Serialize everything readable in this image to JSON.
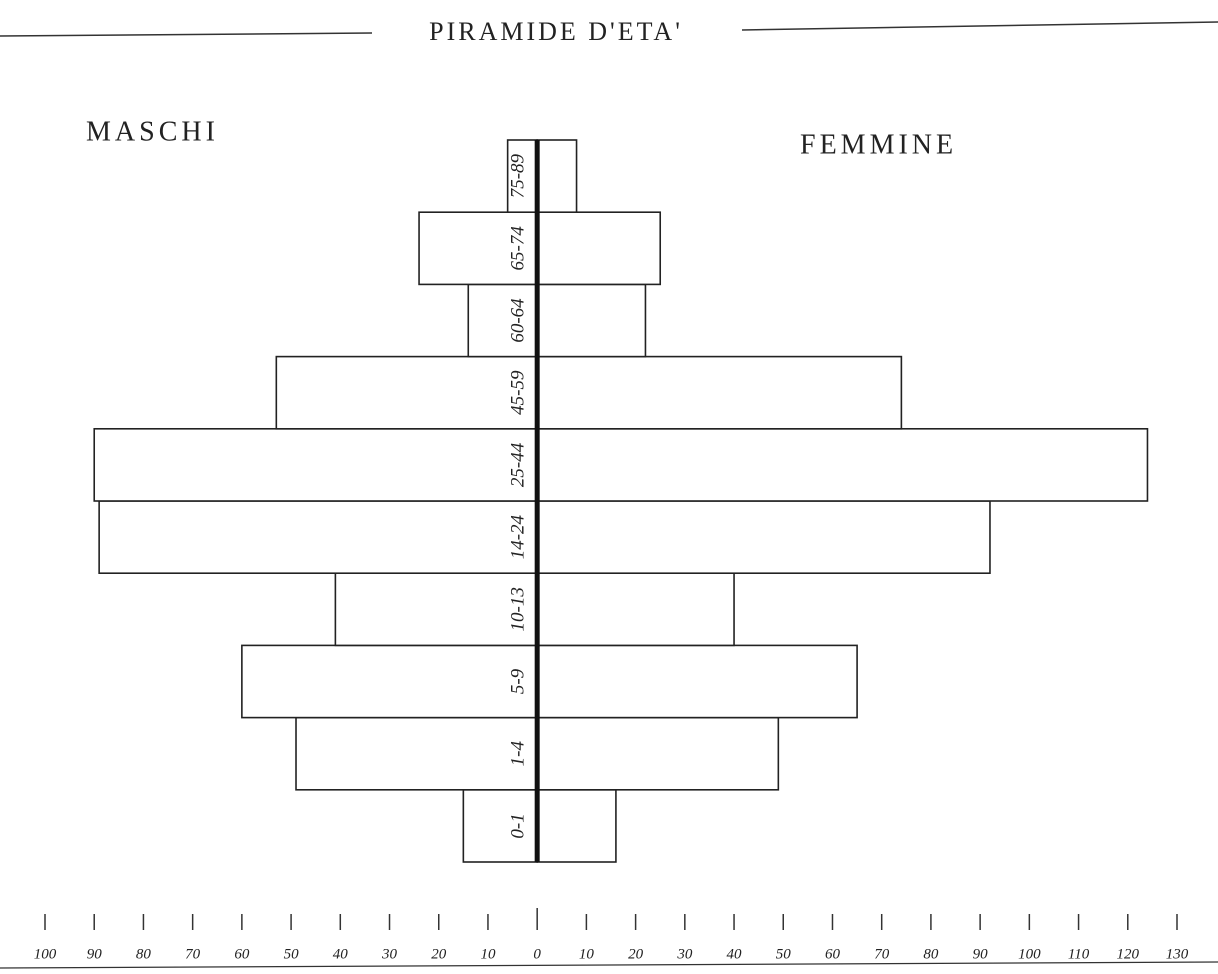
{
  "chart_data": {
    "type": "pyramid",
    "title": "PIRAMIDE D'ETA'",
    "categories": [
      "0-1",
      "1-4",
      "5-9",
      "10-13",
      "14-24",
      "25-44",
      "45-59",
      "60-64",
      "65-74",
      "75-89"
    ],
    "series": [
      {
        "name": "MASCHI",
        "color": "#ffffff",
        "values": [
          -15,
          -49,
          -60,
          -41,
          -89,
          -90,
          -53,
          -14,
          -24,
          -6
        ]
      },
      {
        "name": "FEMMINE",
        "color": "#ffffff",
        "values": [
          16,
          49,
          65,
          40,
          92,
          124,
          74,
          22,
          25,
          8
        ]
      }
    ],
    "xlim": [
      -100,
      130
    ],
    "xticks": [
      {
        "value": -100,
        "label": "100"
      },
      {
        "value": -90,
        "label": "90"
      },
      {
        "value": -80,
        "label": "80"
      },
      {
        "value": -70,
        "label": "70"
      },
      {
        "value": -60,
        "label": "60"
      },
      {
        "value": -50,
        "label": "50"
      },
      {
        "value": -40,
        "label": "40"
      },
      {
        "value": -30,
        "label": "30"
      },
      {
        "value": -20,
        "label": "20"
      },
      {
        "value": -10,
        "label": "10"
      },
      0,
      10,
      20,
      30,
      40,
      50,
      60,
      70,
      80,
      90,
      100,
      110,
      120,
      130
    ],
    "grid": false
  }
}
